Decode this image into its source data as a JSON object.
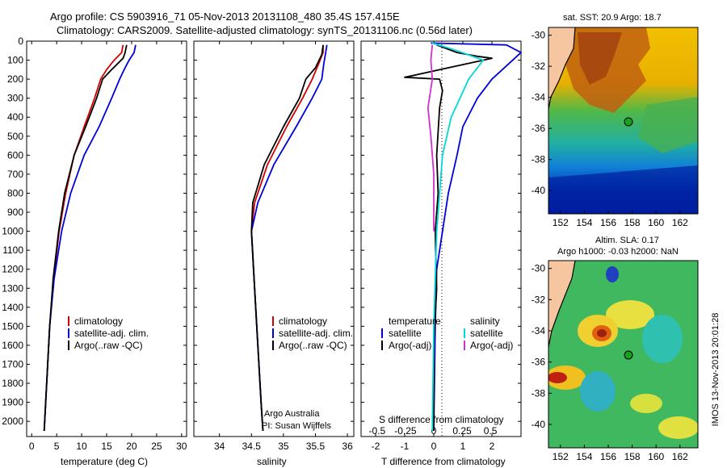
{
  "header": {
    "line1": "Argo profile: CS 5903916_71 05-Nov-2013 20131108_480 35.4S 157.415E",
    "line2": "Climatology: CARS2009. Satellite-adjusted climatology: synTS_20131106.nc (0.56d later)"
  },
  "side_label": "IMOS 13-Nov-2013 20:01:28",
  "colors": {
    "climatology": "#d40000",
    "satellite": "#0000dd",
    "argo": "#000000",
    "satellite_s": "#00d8d8",
    "argo_s": "#d030d0"
  },
  "chart_data": [
    {
      "type": "line",
      "xlabel": "temperature (deg C)",
      "ylabel": "",
      "xlim": [
        -1,
        31
      ],
      "ylim": [
        2080,
        0
      ],
      "x_ticks": [
        "0",
        "5",
        "10",
        "15",
        "20",
        "25",
        "30"
      ],
      "y_ticks": [
        "0",
        "100",
        "200",
        "300",
        "400",
        "500",
        "600",
        "700",
        "800",
        "900",
        "1000",
        "1100",
        "1200",
        "1300",
        "1400",
        "1500",
        "1600",
        "1700",
        "1800",
        "1900",
        "2000"
      ],
      "legend": [
        "climatology",
        "satellite-adj. clim.",
        "Argo(..raw -QC)"
      ],
      "series": [
        {
          "name": "climatology",
          "color": "#d40000",
          "points": [
            [
              18.3,
              20
            ],
            [
              18.0,
              60
            ],
            [
              16.5,
              100
            ],
            [
              15.0,
              150
            ],
            [
              13.8,
              200
            ],
            [
              12.6,
              300
            ],
            [
              10.5,
              450
            ],
            [
              8.5,
              600
            ],
            [
              6.8,
              800
            ],
            [
              5.5,
              1000
            ],
            [
              4.4,
              1250
            ],
            [
              3.6,
              1500
            ],
            [
              3.0,
              1800
            ],
            [
              2.5,
              2050
            ]
          ]
        },
        {
          "name": "satellite-adj. clim.",
          "color": "#0000dd",
          "points": [
            [
              20.8,
              20
            ],
            [
              20.5,
              60
            ],
            [
              19.5,
              100
            ],
            [
              18.5,
              150
            ],
            [
              17.6,
              200
            ],
            [
              16.0,
              300
            ],
            [
              13.5,
              450
            ],
            [
              10.5,
              600
            ],
            [
              7.8,
              800
            ],
            [
              6.0,
              1000
            ],
            [
              4.5,
              1250
            ],
            [
              3.6,
              1500
            ],
            [
              3.0,
              1800
            ],
            [
              2.5,
              2050
            ]
          ]
        },
        {
          "name": "Argo(..raw -QC)",
          "color": "#000000",
          "points": [
            [
              19.0,
              20
            ],
            [
              18.7,
              60
            ],
            [
              18.3,
              90
            ],
            [
              16.0,
              150
            ],
            [
              14.2,
              200
            ],
            [
              13.0,
              300
            ],
            [
              10.8,
              450
            ],
            [
              8.5,
              600
            ],
            [
              6.6,
              800
            ],
            [
              5.4,
              1000
            ],
            [
              4.3,
              1250
            ],
            [
              3.6,
              1500
            ],
            [
              3.0,
              1800
            ],
            [
              2.5,
              2050
            ]
          ]
        }
      ]
    },
    {
      "type": "line",
      "xlabel": "salinity",
      "xlim": [
        33.6,
        36.1
      ],
      "ylim": [
        2080,
        0
      ],
      "x_ticks": [
        "34",
        "34.5",
        "35",
        "35.5",
        "36"
      ],
      "legend": [
        "climatology",
        "satellite-adj. clim.",
        "Argo(..raw -QC)"
      ],
      "annotation": [
        "Argo Australia",
        "PI: Susan Wijffels"
      ],
      "series": [
        {
          "name": "climatology",
          "color": "#d40000",
          "points": [
            [
              35.62,
              20
            ],
            [
              35.62,
              60
            ],
            [
              35.55,
              120
            ],
            [
              35.45,
              200
            ],
            [
              35.3,
              300
            ],
            [
              35.05,
              450
            ],
            [
              34.75,
              650
            ],
            [
              34.55,
              850
            ],
            [
              34.5,
              1000
            ],
            [
              34.55,
              1300
            ],
            [
              34.6,
              1600
            ],
            [
              34.65,
              1900
            ],
            [
              34.68,
              2050
            ]
          ]
        },
        {
          "name": "satellite-adj. clim.",
          "color": "#0000dd",
          "points": [
            [
              35.68,
              20
            ],
            [
              35.66,
              60
            ],
            [
              35.63,
              120
            ],
            [
              35.6,
              200
            ],
            [
              35.45,
              300
            ],
            [
              35.2,
              450
            ],
            [
              34.85,
              650
            ],
            [
              34.6,
              850
            ],
            [
              34.5,
              1000
            ],
            [
              34.55,
              1300
            ],
            [
              34.6,
              1600
            ],
            [
              34.65,
              1900
            ],
            [
              34.68,
              2050
            ]
          ]
        },
        {
          "name": "Argo(..raw -QC)",
          "color": "#000000",
          "points": [
            [
              35.62,
              20
            ],
            [
              35.6,
              70
            ],
            [
              35.5,
              140
            ],
            [
              35.35,
              200
            ],
            [
              35.25,
              300
            ],
            [
              35.0,
              450
            ],
            [
              34.7,
              650
            ],
            [
              34.52,
              850
            ],
            [
              34.5,
              1000
            ],
            [
              34.55,
              1300
            ],
            [
              34.6,
              1600
            ],
            [
              34.65,
              1900
            ],
            [
              34.68,
              2050
            ]
          ]
        }
      ]
    },
    {
      "type": "line",
      "xlabel": "T difference from climatology",
      "xlabel_top": "S difference from climatology",
      "xlim": [
        -2.5,
        3.0
      ],
      "ylim": [
        2080,
        0
      ],
      "x_ticks": [
        "-2",
        "-1",
        "0",
        "1",
        "2"
      ],
      "x_ticks_top": [
        "-0.5",
        "-0.25",
        "0",
        "0.25",
        "0.5"
      ],
      "legend_titles": [
        "temperature",
        "salinity"
      ],
      "legend": [
        "satellite",
        "Argo(-adj)",
        "satellite",
        "Argo(-adj)"
      ],
      "series": [
        {
          "name": "satellite",
          "color": "#0000dd",
          "points": [
            [
              -0.1,
              10
            ],
            [
              2.5,
              20
            ],
            [
              3.0,
              60
            ],
            [
              2.0,
              200
            ],
            [
              1.5,
              300
            ],
            [
              1.0,
              450
            ],
            [
              0.8,
              600
            ],
            [
              0.5,
              800
            ],
            [
              0.3,
              1000
            ],
            [
              0.1,
              1200
            ],
            [
              0.05,
              1500
            ],
            [
              0.0,
              2050
            ]
          ]
        },
        {
          "name": "Argo(-adj)",
          "color": "#000000",
          "points": [
            [
              0.1,
              20
            ],
            [
              0.8,
              60
            ],
            [
              1.5,
              80
            ],
            [
              2.0,
              90
            ],
            [
              0.5,
              140
            ],
            [
              -1.0,
              190
            ],
            [
              0.2,
              200
            ],
            [
              0.3,
              260
            ],
            [
              0.2,
              350
            ],
            [
              0.1,
              600
            ],
            [
              0.15,
              800
            ],
            [
              0.05,
              1000
            ],
            [
              0.1,
              1300
            ],
            [
              0.0,
              1600
            ],
            [
              0.0,
              2050
            ]
          ]
        },
        {
          "name": "satellite",
          "color": "#00d8d8",
          "points": [
            [
              -0.05,
              10
            ],
            [
              0.8,
              50
            ],
            [
              1.7,
              100
            ],
            [
              1.2,
              200
            ],
            [
              0.6,
              400
            ],
            [
              0.3,
              600
            ],
            [
              0.1,
              1000
            ],
            [
              0.0,
              1500
            ],
            [
              -0.05,
              2050
            ]
          ]
        },
        {
          "name": "Argo(-adj)",
          "color": "#d030d0",
          "points": [
            [
              -0.05,
              20
            ],
            [
              -0.1,
              100
            ],
            [
              -0.05,
              200
            ],
            [
              -0.2,
              350
            ],
            [
              -0.1,
              500
            ],
            [
              0.0,
              700
            ],
            [
              0.0,
              1000
            ]
          ]
        }
      ]
    },
    {
      "type": "heatmap",
      "title": "sat. SST: 20.9 Argo: 18.7",
      "xlim": [
        151,
        163.5
      ],
      "ylim": [
        -41.5,
        -29.5
      ],
      "x_ticks": [
        "152",
        "154",
        "156",
        "158",
        "160",
        "162"
      ],
      "y_ticks": [
        "-30",
        "-32",
        "-34",
        "-36",
        "-38",
        "-40"
      ],
      "marker": {
        "lon": 157.4,
        "lat": -35.4
      }
    },
    {
      "type": "heatmap",
      "title": "Altim. SLA: 0.17",
      "subtitle": "Argo h1000: -0.03 h2000: NaN",
      "xlim": [
        151,
        163.5
      ],
      "ylim": [
        -41.5,
        -29.5
      ],
      "x_ticks": [
        "152",
        "154",
        "156",
        "158",
        "160",
        "162"
      ],
      "y_ticks": [
        "-30",
        "-32",
        "-34",
        "-36",
        "-38",
        "-40"
      ],
      "marker": {
        "lon": 157.4,
        "lat": -35.4
      }
    }
  ]
}
